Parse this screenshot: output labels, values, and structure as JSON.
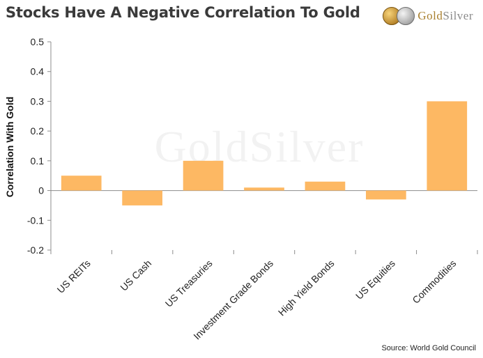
{
  "header": {
    "title": "Stocks Have A Negative Correlation To Gold",
    "logo_text_gold": "Gold",
    "logo_text_silver": "Silver",
    "watermark": "GoldSilver"
  },
  "footer": {
    "source": "Source: World Gold Council"
  },
  "chart_data": {
    "type": "bar",
    "title": "Stocks Have A Negative Correlation To Gold",
    "xlabel": "",
    "ylabel": "Correlation With Gold",
    "categories": [
      "US REITs",
      "US Cash",
      "US Treasuries",
      "Investment Grade Bonds",
      "High Yield Bonds",
      "US Equities",
      "Commodities"
    ],
    "values": [
      0.05,
      -0.05,
      0.1,
      0.01,
      0.03,
      -0.03,
      0.3
    ],
    "ylim": [
      -0.2,
      0.5
    ],
    "yticks": [
      "0.5",
      "0.4",
      "0.3",
      "0.2",
      "0.1",
      "0",
      "-0.1",
      "-0.2"
    ],
    "bar_color": "#FDB863",
    "grid": false,
    "legend": "none"
  }
}
